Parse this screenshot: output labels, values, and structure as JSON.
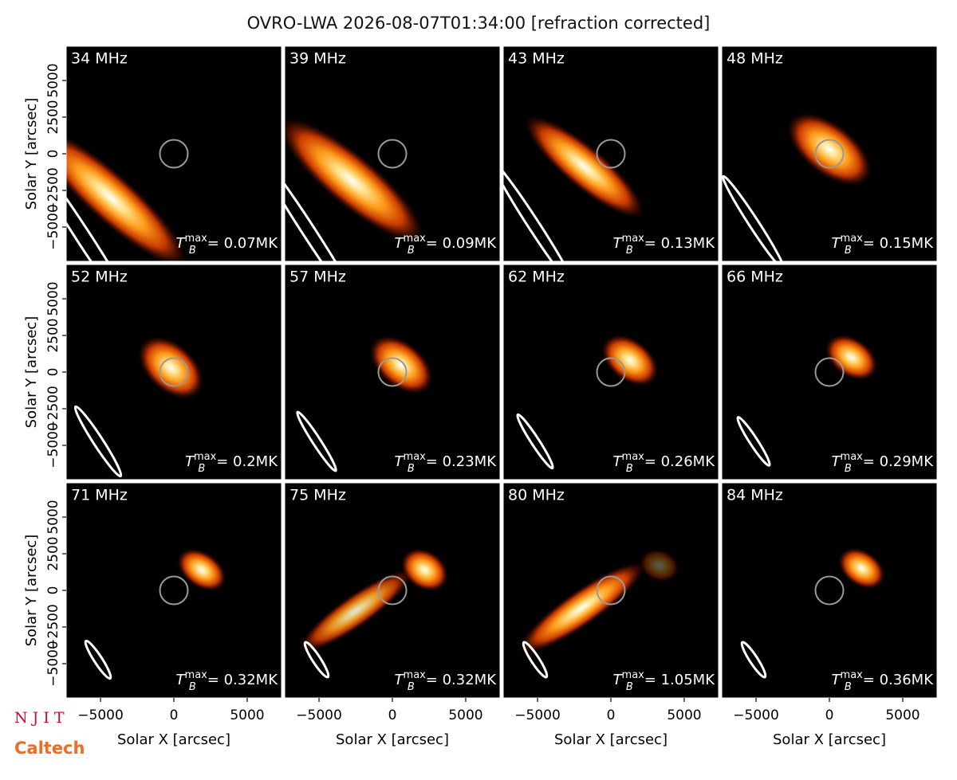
{
  "chart_data": {
    "type": "image-grid",
    "title": "OVRO-LWA 2026-08-07T01:34:00 [refraction corrected]",
    "x_label": "Solar X [arcsec]",
    "y_label": "Solar Y [arcsec]",
    "xlim": [
      -7340,
      7340
    ],
    "ylim": [
      -7340,
      7340
    ],
    "xticks": [
      {
        "value": -5000,
        "label": "−5000"
      },
      0,
      5000
    ],
    "yticks": [
      {
        "value": -5000,
        "label": "−5000"
      },
      {
        "value": -2500,
        "label": "−2500"
      },
      0,
      2500,
      5000
    ],
    "tb_symbol": "T",
    "tb_sub": "B",
    "tb_sup": "max",
    "colormap": [
      "#ffffff",
      "#ffe08a",
      "#ff9a1a",
      "#c83a00",
      "#5a0800"
    ],
    "panels": [
      {
        "label": "34 MHz",
        "tb": "= 0.07MK",
        "sources": [
          {
            "x": -4300,
            "y": -3000
          }
        ]
      },
      {
        "label": "39 MHz",
        "tb": "= 0.09MK",
        "sources": [
          {
            "x": -2800,
            "y": -1800
          }
        ]
      },
      {
        "label": "43 MHz",
        "tb": "= 0.13MK",
        "sources": [
          {
            "x": -1800,
            "y": -900
          }
        ]
      },
      {
        "label": "48 MHz",
        "tb": "= 0.15MK",
        "sources": [
          {
            "x": 0,
            "y": 300
          }
        ]
      },
      {
        "label": "52 MHz",
        "tb": "= 0.2MK",
        "sources": [
          {
            "x": -200,
            "y": 300
          }
        ]
      },
      {
        "label": "57 MHz",
        "tb": "= 0.23MK",
        "sources": [
          {
            "x": 600,
            "y": 500
          }
        ]
      },
      {
        "label": "62 MHz",
        "tb": "= 0.26MK",
        "sources": [
          {
            "x": 1300,
            "y": 800
          }
        ]
      },
      {
        "label": "66 MHz",
        "tb": "= 0.29MK",
        "sources": [
          {
            "x": 1500,
            "y": 1000
          }
        ]
      },
      {
        "label": "71 MHz",
        "tb": "= 0.32MK",
        "sources": [
          {
            "x": 1900,
            "y": 1400
          }
        ]
      },
      {
        "label": "75 MHz",
        "tb": "= 0.32MK",
        "sources": [
          {
            "x": 2200,
            "y": 1400
          },
          {
            "x": -2500,
            "y": -1400
          }
        ]
      },
      {
        "label": "80 MHz",
        "tb": "= 1.05MK",
        "sources": [
          {
            "x": -2000,
            "y": -1200
          },
          {
            "x": 3300,
            "y": 1700
          }
        ]
      },
      {
        "label": "84 MHz",
        "tb": "= 0.36MK",
        "sources": [
          {
            "x": 2200,
            "y": 1500
          }
        ]
      }
    ],
    "logos": [
      "N J I T",
      "Caltech"
    ]
  }
}
